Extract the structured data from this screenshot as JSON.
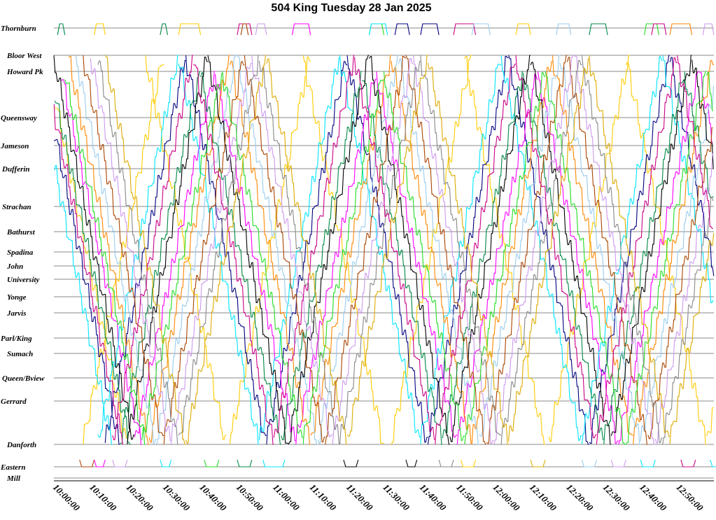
{
  "chart_data": {
    "type": "line",
    "title": "504 King Tuesday 28 Jan 2025",
    "x_ticks": [
      "10:00:00",
      "10:10:00",
      "10:20:00",
      "10:30:00",
      "10:40:00",
      "10:50:00",
      "11:00:00",
      "11:10:00",
      "11:20:00",
      "11:30:00",
      "11:40:00",
      "11:50:00",
      "12:00:00",
      "12:10:00",
      "12:20:00",
      "12:30:00",
      "12:40:00",
      "12:50:00"
    ],
    "xlim_minutes": [
      0,
      180
    ],
    "stops": [
      {
        "name": "Thornburn",
        "pos": 0
      },
      {
        "name": "Bloor West",
        "pos": 39
      },
      {
        "name": "Howard Pk",
        "pos": 62
      },
      {
        "name": "Queensway",
        "pos": 128
      },
      {
        "name": "Jameson",
        "pos": 168
      },
      {
        "name": "Dufferin",
        "pos": 201
      },
      {
        "name": "Strachan",
        "pos": 255
      },
      {
        "name": "Bathurst",
        "pos": 291
      },
      {
        "name": "Spadina",
        "pos": 320
      },
      {
        "name": "John",
        "pos": 340
      },
      {
        "name": "University",
        "pos": 359
      },
      {
        "name": "Yonge",
        "pos": 384
      },
      {
        "name": "Jarvis",
        "pos": 407
      },
      {
        "name": "Parl/King",
        "pos": 443
      },
      {
        "name": "Sumach",
        "pos": 465
      },
      {
        "name": "Queen/Bview",
        "pos": 500
      },
      {
        "name": "Gerrard",
        "pos": 533
      },
      {
        "name": "Danforth",
        "pos": 595
      },
      {
        "name": "Eastern",
        "pos": 627
      },
      {
        "name": "Mill",
        "pos": 643
      }
    ],
    "colors": [
      "#ffcc00",
      "#000080",
      "#ff00ff",
      "#00e5ff",
      "#ff8800",
      "#008844",
      "#99ccee",
      "#000000",
      "#aa4400",
      "#cc99ee",
      "#22dd22",
      "#888888",
      "#cc0088",
      "#ddaa00"
    ],
    "series": [
      {
        "color": 0,
        "runs": [
          [
            -2,
            "DW"
          ],
          [
            8,
            "UW"
          ],
          [
            25,
            "DW"
          ],
          [
            48,
            "UW"
          ],
          [
            68,
            "DW"
          ],
          [
            92,
            "UW"
          ],
          [
            112,
            "DW"
          ],
          [
            135,
            "UW"
          ],
          [
            156,
            "DW"
          ],
          [
            178,
            "UW"
          ]
        ]
      },
      {
        "color": 1,
        "runs": [
          [
            -4,
            "DW"
          ],
          [
            14,
            "UW"
          ],
          [
            36,
            "DW"
          ],
          [
            58,
            "UW"
          ],
          [
            80,
            "DW"
          ],
          [
            102,
            "UW"
          ],
          [
            124,
            "DW"
          ],
          [
            146,
            "UW"
          ],
          [
            168,
            "DW"
          ]
        ]
      },
      {
        "color": 2,
        "runs": [
          [
            2,
            "DE"
          ],
          [
            22,
            "UE"
          ],
          [
            44,
            "DE"
          ],
          [
            66,
            "UE"
          ],
          [
            88,
            "DE"
          ],
          [
            110,
            "UE"
          ],
          [
            132,
            "DE"
          ],
          [
            154,
            "UE"
          ],
          [
            176,
            "DE"
          ]
        ]
      },
      {
        "color": 3,
        "runs": [
          [
            -6,
            "DE"
          ],
          [
            12,
            "UE"
          ],
          [
            34,
            "DE"
          ],
          [
            56,
            "UE"
          ],
          [
            78,
            "DE"
          ],
          [
            100,
            "UE"
          ],
          [
            122,
            "DE"
          ],
          [
            144,
            "UE"
          ],
          [
            166,
            "DE"
          ]
        ]
      },
      {
        "color": 4,
        "runs": [
          [
            4,
            "DW"
          ],
          [
            26,
            "UW"
          ],
          [
            48,
            "DW"
          ],
          [
            70,
            "UW"
          ],
          [
            92,
            "DW"
          ],
          [
            114,
            "UW"
          ],
          [
            136,
            "DW"
          ],
          [
            158,
            "UW"
          ]
        ]
      },
      {
        "color": 5,
        "runs": [
          [
            -1,
            "DE"
          ],
          [
            18,
            "UE"
          ],
          [
            40,
            "DE"
          ],
          [
            62,
            "UE"
          ],
          [
            84,
            "DE"
          ],
          [
            106,
            "UE"
          ],
          [
            128,
            "DE"
          ],
          [
            150,
            "UE"
          ],
          [
            172,
            "DE"
          ]
        ]
      },
      {
        "color": 6,
        "runs": [
          [
            6,
            "DE"
          ],
          [
            28,
            "UE"
          ],
          [
            50,
            "DE"
          ],
          [
            72,
            "UE"
          ],
          [
            94,
            "DE"
          ],
          [
            116,
            "UE"
          ],
          [
            138,
            "DE"
          ],
          [
            160,
            "UE"
          ]
        ]
      },
      {
        "color": 7,
        "runs": [
          [
            0,
            "DW"
          ],
          [
            20,
            "UW"
          ],
          [
            42,
            "DW"
          ],
          [
            64,
            "UW"
          ],
          [
            86,
            "DW"
          ],
          [
            108,
            "UW"
          ],
          [
            130,
            "DW"
          ],
          [
            152,
            "UW"
          ],
          [
            174,
            "DW"
          ]
        ]
      },
      {
        "color": 8,
        "runs": [
          [
            8,
            "DW"
          ],
          [
            30,
            "UW"
          ],
          [
            52,
            "DW"
          ],
          [
            74,
            "UW"
          ],
          [
            96,
            "DW"
          ],
          [
            118,
            "UW"
          ],
          [
            140,
            "DW"
          ],
          [
            162,
            "UW"
          ]
        ]
      },
      {
        "color": 9,
        "runs": [
          [
            10,
            "DE"
          ],
          [
            32,
            "UE"
          ],
          [
            54,
            "DE"
          ],
          [
            76,
            "UE"
          ],
          [
            98,
            "DE"
          ],
          [
            120,
            "UE"
          ],
          [
            142,
            "DE"
          ],
          [
            164,
            "UE"
          ]
        ]
      },
      {
        "color": 10,
        "runs": [
          [
            3,
            "DE"
          ],
          [
            24,
            "UE"
          ],
          [
            46,
            "DE"
          ],
          [
            68,
            "UE"
          ],
          [
            90,
            "DE"
          ],
          [
            112,
            "UE"
          ],
          [
            134,
            "DE"
          ],
          [
            156,
            "UE"
          ],
          [
            178,
            "DE"
          ]
        ]
      },
      {
        "color": 11,
        "runs": [
          [
            12,
            "DW"
          ],
          [
            34,
            "UW"
          ],
          [
            56,
            "DW"
          ],
          [
            78,
            "UW"
          ],
          [
            100,
            "DW"
          ],
          [
            122,
            "UW"
          ],
          [
            144,
            "DW"
          ],
          [
            166,
            "UW"
          ]
        ]
      },
      {
        "color": 12,
        "runs": [
          [
            -3,
            "DE"
          ],
          [
            16,
            "UE"
          ],
          [
            38,
            "DE"
          ],
          [
            60,
            "UE"
          ],
          [
            82,
            "DE"
          ],
          [
            104,
            "UE"
          ],
          [
            126,
            "DE"
          ],
          [
            148,
            "UE"
          ],
          [
            170,
            "DE"
          ]
        ]
      },
      {
        "color": 13,
        "runs": [
          [
            14,
            "DW"
          ],
          [
            36,
            "UW"
          ],
          [
            58,
            "DW"
          ],
          [
            80,
            "UW"
          ],
          [
            102,
            "DW"
          ],
          [
            124,
            "UW"
          ],
          [
            146,
            "DW"
          ],
          [
            168,
            "UW"
          ]
        ]
      }
    ],
    "top_loops": [
      [
        1,
        2,
        5
      ],
      [
        11,
        3,
        0
      ],
      [
        29,
        2,
        5
      ],
      [
        34,
        6,
        0
      ],
      [
        50,
        4,
        12
      ],
      [
        51,
        2,
        8
      ],
      [
        55,
        3,
        9
      ],
      [
        65,
        5,
        2
      ],
      [
        86,
        4,
        10
      ],
      [
        86,
        5,
        3
      ],
      [
        93,
        4,
        1
      ],
      [
        100,
        5,
        1
      ],
      [
        109,
        6,
        12
      ],
      [
        114,
        5,
        6
      ],
      [
        126,
        4,
        0
      ],
      [
        137,
        4,
        6
      ],
      [
        146,
        5,
        5
      ],
      [
        161,
        4,
        10
      ],
      [
        163,
        4,
        12
      ],
      [
        168,
        6,
        4
      ],
      [
        177,
        3,
        9
      ]
    ],
    "bottom_loops": [
      [
        7,
        4,
        8
      ],
      [
        11,
        3,
        2
      ],
      [
        16,
        4,
        9
      ],
      [
        29,
        3,
        3
      ],
      [
        41,
        4,
        10
      ],
      [
        50,
        4,
        5
      ],
      [
        57,
        6,
        3
      ],
      [
        79,
        4,
        7
      ],
      [
        96,
        3,
        7
      ],
      [
        105,
        4,
        11
      ],
      [
        111,
        4,
        0
      ],
      [
        130,
        4,
        13
      ],
      [
        144,
        4,
        6
      ],
      [
        152,
        4,
        9
      ],
      [
        160,
        4,
        3
      ],
      [
        171,
        4,
        12
      ],
      [
        179,
        3,
        3
      ]
    ]
  }
}
